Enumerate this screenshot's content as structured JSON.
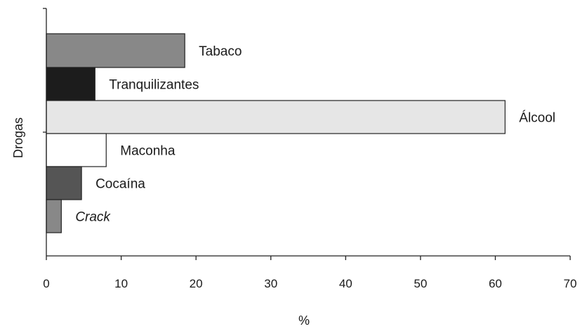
{
  "chart_data": {
    "type": "bar",
    "orientation": "horizontal",
    "title": "",
    "xlabel": "%",
    "ylabel": "Drogas",
    "xlim": [
      0,
      70
    ],
    "xticks": [
      0,
      10,
      20,
      30,
      40,
      50,
      60,
      70
    ],
    "grid": false,
    "legend": "none",
    "categories": [
      "Tabaco",
      "Tranquilizantes",
      "Álcool",
      "Maconha",
      "Cocaína",
      "Crack"
    ],
    "values": [
      18.5,
      6.5,
      61.3,
      8.0,
      4.7,
      2.0
    ],
    "bar_colors": [
      "#888888",
      "#1c1c1c",
      "#e6e6e6",
      "#ffffff",
      "#555555",
      "#888888"
    ],
    "italic_labels": [
      "Crack"
    ]
  }
}
